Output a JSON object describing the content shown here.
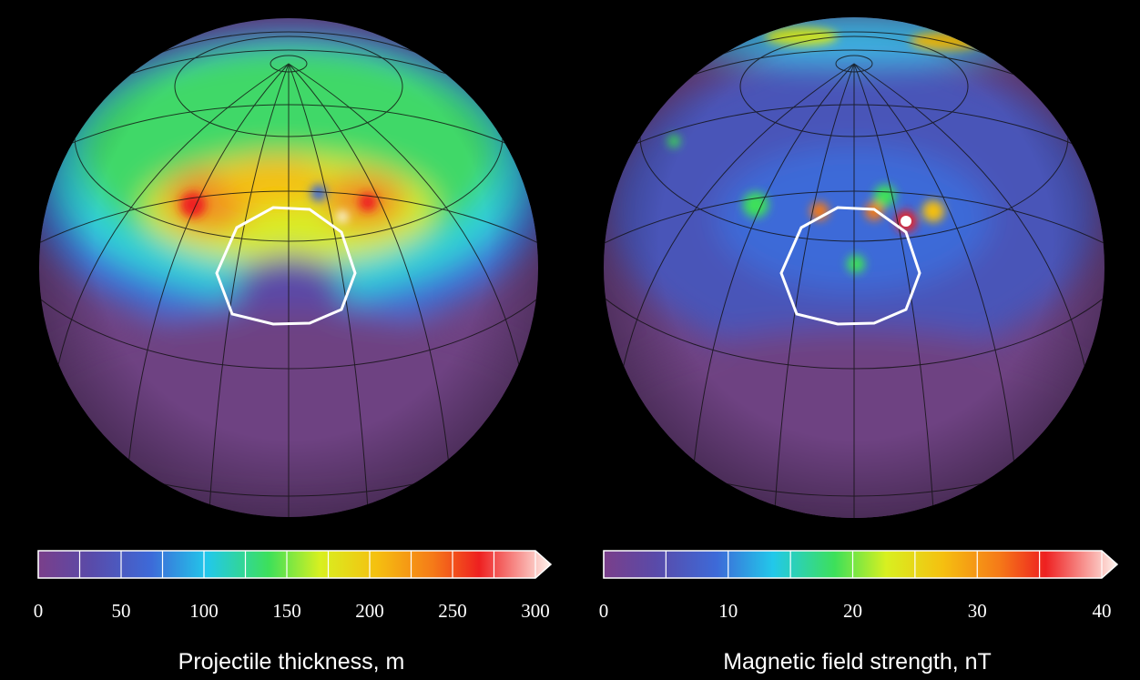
{
  "panels": [
    {
      "colorbar_label": "Projectile thickness, m",
      "colorbar_range": [
        0,
        300
      ],
      "colorbar_ticks": [
        0,
        50,
        100,
        150,
        200,
        250,
        300
      ]
    },
    {
      "colorbar_label": "Magnetic field strength, nT",
      "colorbar_range": [
        0,
        40
      ],
      "colorbar_ticks": [
        0,
        10,
        20,
        30,
        40
      ]
    }
  ]
}
